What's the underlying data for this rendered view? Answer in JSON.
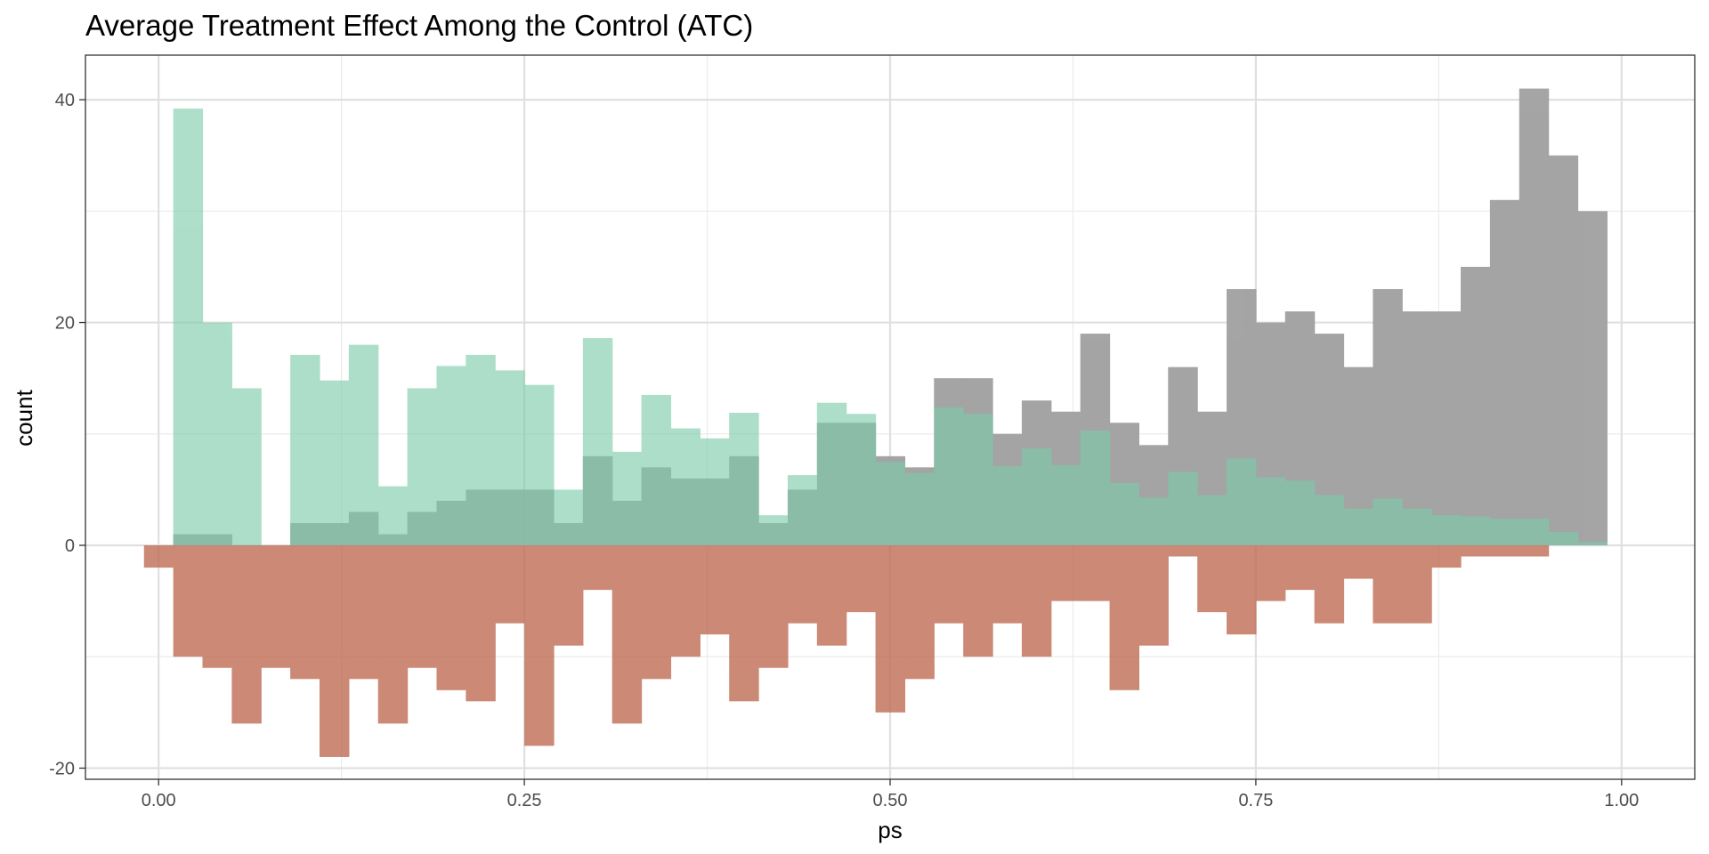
{
  "chart_data": {
    "type": "bar",
    "title": "Average Treatment Effect Among the Control (ATC)",
    "xlabel": "ps",
    "ylabel": "count",
    "xlim": [
      -0.05,
      1.05
    ],
    "ylim": [
      -21,
      44
    ],
    "grid": true,
    "legend": "none",
    "x_ticks": [
      0.0,
      0.25,
      0.5,
      0.75,
      1.0
    ],
    "x_tick_labels": [
      "0.00",
      "0.25",
      "0.50",
      "0.75",
      "1.00"
    ],
    "y_ticks": [
      -20,
      0,
      20,
      40
    ],
    "y_tick_labels": [
      "-20",
      "0",
      "20",
      "40"
    ],
    "bin_edges": [
      -0.01,
      0.01,
      0.03,
      0.05,
      0.07,
      0.09,
      0.11,
      0.13,
      0.15,
      0.17,
      0.19,
      0.21,
      0.23,
      0.25,
      0.27,
      0.29,
      0.31,
      0.33,
      0.35,
      0.37,
      0.39,
      0.41,
      0.43,
      0.45,
      0.47,
      0.49,
      0.51,
      0.53,
      0.55,
      0.57,
      0.59,
      0.61,
      0.63,
      0.65,
      0.67,
      0.69,
      0.71,
      0.73,
      0.75,
      0.77,
      0.79,
      0.81,
      0.83,
      0.85,
      0.87,
      0.89,
      0.91,
      0.93,
      0.95,
      0.97,
      0.99
    ],
    "series": [
      {
        "color": "#a0a0a0",
        "opacity": 0.95,
        "values": [
          0,
          1,
          1,
          0,
          0,
          2,
          2,
          3,
          1,
          3,
          4,
          5,
          5,
          5,
          2,
          8,
          4,
          7,
          6,
          6,
          8,
          2,
          5,
          11,
          11,
          8,
          7,
          15,
          15,
          10,
          13,
          12,
          19,
          11,
          9,
          16,
          12,
          23,
          20,
          21,
          19,
          16,
          23,
          21,
          21,
          25,
          31,
          41,
          35,
          30
        ]
      },
      {
        "color": "#7bcbaa",
        "opacity": 0.62,
        "values": [
          0,
          39.2,
          20,
          14.1,
          0,
          17.1,
          14.8,
          18,
          5.3,
          14.1,
          16.1,
          17.1,
          15.7,
          14.4,
          5,
          18.6,
          8.4,
          13.5,
          10.5,
          9.6,
          11.9,
          2.7,
          6.3,
          12.8,
          11.8,
          7.5,
          6.5,
          12.4,
          11.8,
          7.1,
          8.7,
          7.2,
          10.3,
          5.6,
          4.3,
          6.6,
          4.5,
          7.8,
          6.1,
          5.8,
          4.5,
          3.3,
          4.2,
          3.3,
          2.7,
          2.6,
          2.4,
          2.4,
          1.2,
          0.3
        ]
      },
      {
        "color": "#c07058",
        "opacity": 0.82,
        "values": [
          -2,
          -10,
          -11,
          -16,
          -11,
          -12,
          -19,
          -12,
          -16,
          -11,
          -13,
          -14,
          -7,
          -18,
          -9,
          -4,
          -16,
          -12,
          -10,
          -8,
          -14,
          -11,
          -7,
          -9,
          -6,
          -15,
          -12,
          -7,
          -10,
          -7,
          -10,
          -5,
          -5,
          -13,
          -9,
          -1,
          -6,
          -8,
          -5,
          -4,
          -7,
          -3,
          -7,
          -7,
          -2,
          -1,
          -1,
          -1,
          0,
          0
        ]
      }
    ]
  }
}
